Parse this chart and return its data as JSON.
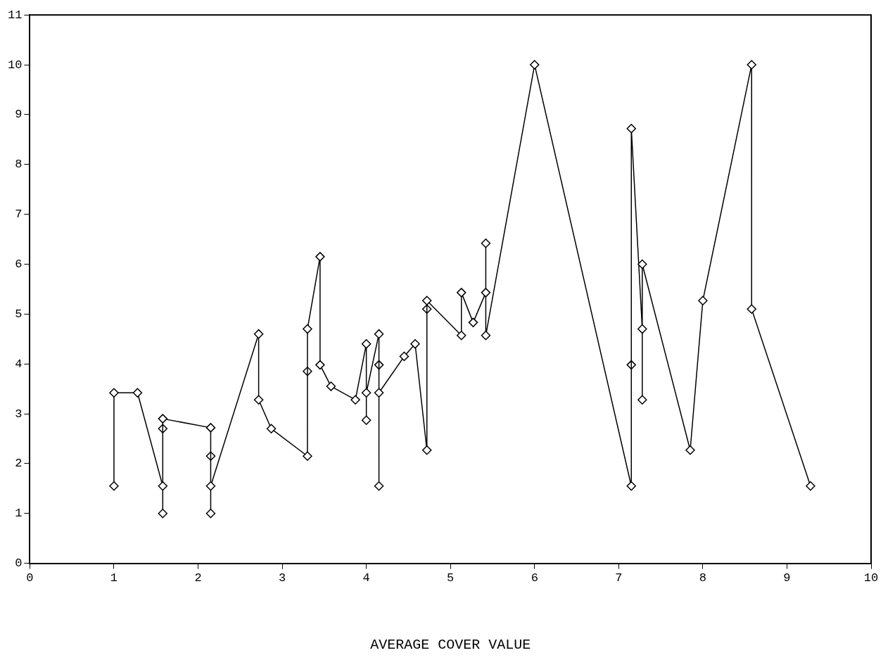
{
  "chart_data": {
    "type": "line",
    "xlabel": "AVERAGE COVER VALUE",
    "marker": "diamond",
    "grid": false,
    "legend": false,
    "xlim": [
      0,
      10
    ],
    "xticks": [
      0,
      1,
      2,
      3,
      4,
      5,
      6,
      7,
      8,
      9,
      10
    ],
    "ylim": [
      0,
      11
    ],
    "yticks": [
      0,
      1,
      2,
      3,
      4,
      5,
      6,
      7,
      8,
      9,
      10,
      11
    ],
    "series": [
      {
        "color": "#000000",
        "x": [
          1.0,
          1.0,
          1.28,
          1.58,
          1.58,
          1.58,
          2.15,
          2.15,
          2.15,
          2.72,
          2.72,
          2.87,
          3.3,
          3.3,
          3.45,
          3.45,
          3.58,
          3.87,
          4.0,
          4.0,
          4.0,
          4.15,
          4.15,
          4.15,
          4.45,
          4.58,
          4.72,
          4.72,
          5.13,
          5.13,
          5.27,
          5.42,
          5.42,
          5.42,
          6.0,
          7.15,
          7.15,
          7.28,
          7.28,
          7.28,
          7.85,
          8.0,
          8.58,
          8.58,
          9.28
        ],
        "values": [
          1.55,
          3.42,
          3.42,
          1.55,
          1.0,
          2.9,
          2.72,
          1.0,
          1.55,
          4.6,
          3.28,
          2.7,
          2.15,
          4.7,
          6.15,
          3.98,
          3.55,
          3.28,
          4.4,
          2.87,
          3.42,
          4.6,
          1.55,
          3.42,
          4.15,
          4.4,
          2.27,
          5.27,
          4.57,
          5.43,
          4.83,
          5.43,
          6.42,
          4.57,
          10.0,
          1.55,
          8.72,
          4.7,
          3.28,
          6.0,
          2.27,
          5.27,
          10.0,
          5.1,
          1.55
        ]
      },
      {
        "type": "scatter",
        "color": "#000000",
        "x": [
          1.58,
          2.15,
          3.3,
          4.15,
          4.72,
          7.15
        ],
        "values": [
          2.7,
          2.15,
          3.85,
          3.98,
          5.1,
          3.98
        ]
      }
    ]
  }
}
